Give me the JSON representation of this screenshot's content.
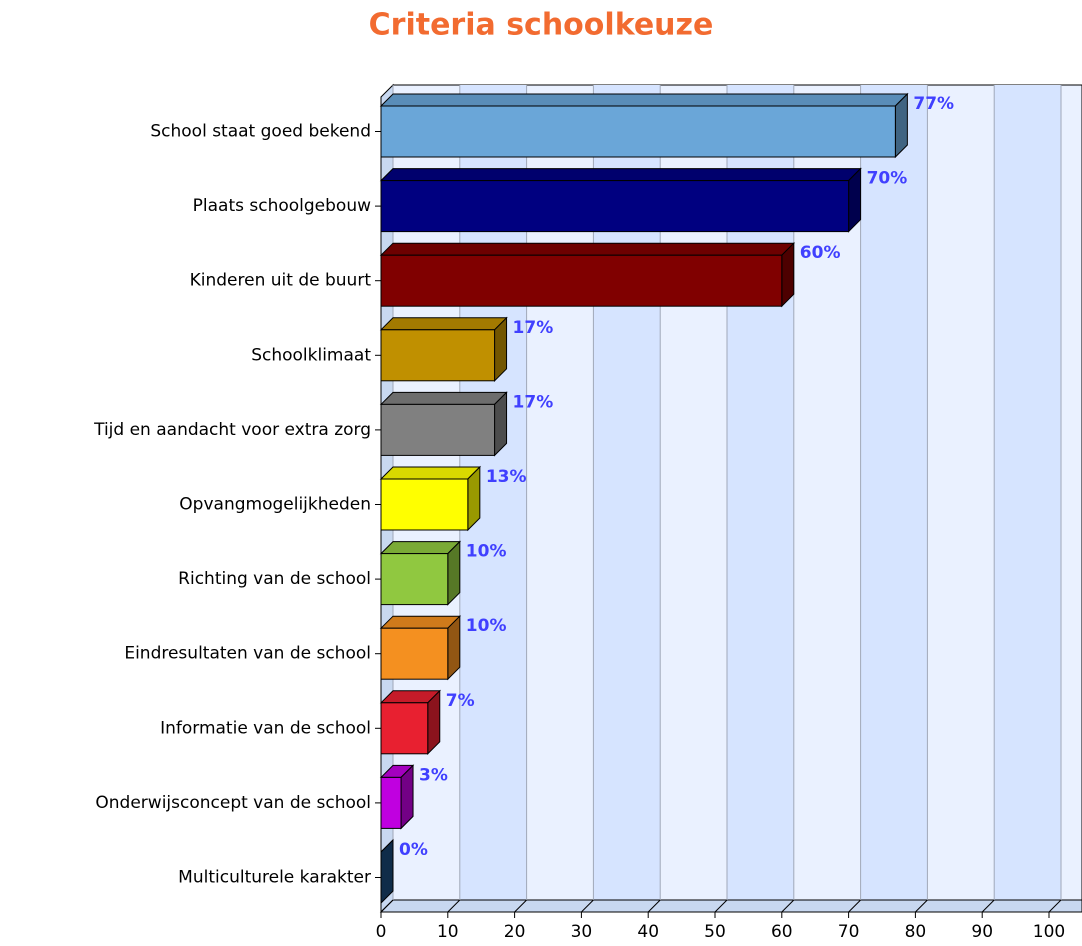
{
  "chart_data": {
    "type": "bar",
    "orientation": "horizontal",
    "title": "Criteria schoolkeuze",
    "categories": [
      "School staat goed bekend",
      "Plaats schoolgebouw",
      "Kinderen uit de buurt",
      "Schoolklimaat",
      "Tijd en aandacht voor extra zorg",
      "Opvangmogelijkheden",
      "Richting van de school",
      "Eindresultaten van de school",
      "Informatie van de school",
      "Onderwijsconcept van de school",
      "Multiculturele karakter"
    ],
    "values": [
      77,
      70,
      60,
      17,
      17,
      13,
      10,
      10,
      7,
      3,
      0
    ],
    "value_labels": [
      "77%",
      "70%",
      "60%",
      "17%",
      "17%",
      "13%",
      "10%",
      "10%",
      "7%",
      "3%",
      "0%"
    ],
    "colors": [
      "#6aa6d8",
      "#000080",
      "#800000",
      "#c09000",
      "#808080",
      "#ffff00",
      "#90c840",
      "#f49020",
      "#e82030",
      "#c000e0",
      "#1a4a7a"
    ],
    "xlim": [
      0,
      100
    ],
    "xticks": [
      0,
      10,
      20,
      30,
      40,
      50,
      60,
      70,
      80,
      90,
      100
    ],
    "grid": true
  }
}
